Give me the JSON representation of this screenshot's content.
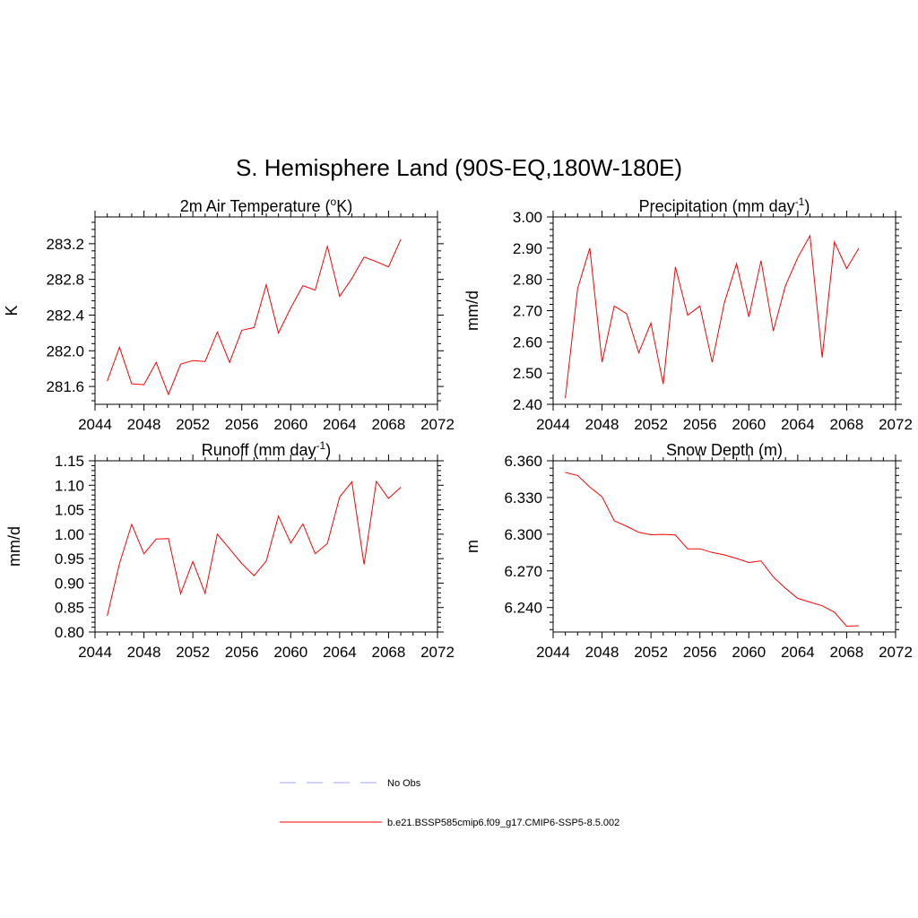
{
  "title": "S. Hemisphere Land (90S-EQ,180W-180E)",
  "colors": {
    "model": "#ff0000",
    "obs": "#a0a0ff"
  },
  "legend": [
    {
      "label": "No Obs",
      "color": "#a0a0ff",
      "dash": true
    },
    {
      "label": "b.e21.BSSP585cmip6.f09_g17.CMIP6-SSP5-8.5.002",
      "color": "#ff0000",
      "dash": false
    }
  ],
  "chart_data": [
    {
      "type": "line",
      "title_main": "2m Air Temperature (",
      "title_sup_pre": "o",
      "title_after_sup": "K)",
      "title_tail": "",
      "ylabel": "K",
      "xlim": [
        2044,
        2072
      ],
      "ylim": [
        281.4,
        283.5
      ],
      "xticks": [
        2044,
        2048,
        2052,
        2056,
        2060,
        2064,
        2068,
        2072
      ],
      "yticks": [
        281.6,
        282.0,
        282.4,
        282.8,
        283.2
      ],
      "ytick_labels": [
        "281.6",
        "282.0",
        "282.4",
        "282.8",
        "283.2"
      ],
      "x": [
        2045,
        2046,
        2047,
        2048,
        2049,
        2050,
        2051,
        2052,
        2053,
        2054,
        2055,
        2056,
        2057,
        2058,
        2059,
        2060,
        2061,
        2062,
        2063,
        2064,
        2065,
        2066,
        2067,
        2068,
        2069
      ],
      "values": [
        281.66,
        282.04,
        281.63,
        281.62,
        281.87,
        281.51,
        281.85,
        281.89,
        281.88,
        282.21,
        281.87,
        282.23,
        282.26,
        282.74,
        282.2,
        282.48,
        282.73,
        282.68,
        283.17,
        282.61,
        282.81,
        283.05,
        283.0,
        282.94,
        283.25
      ]
    },
    {
      "type": "line",
      "title_main": "Precipitation (mm day",
      "title_sup_pre": "-1",
      "title_after_sup": ")",
      "title_tail": "",
      "ylabel": "mm/d",
      "xlim": [
        2044,
        2072
      ],
      "ylim": [
        2.4,
        3.0
      ],
      "xticks": [
        2044,
        2048,
        2052,
        2056,
        2060,
        2064,
        2068,
        2072
      ],
      "yticks": [
        2.4,
        2.5,
        2.6,
        2.7,
        2.8,
        2.9,
        3.0
      ],
      "ytick_labels": [
        "2.40",
        "2.50",
        "2.60",
        "2.70",
        "2.80",
        "2.90",
        "3.00"
      ],
      "x": [
        2045,
        2046,
        2047,
        2048,
        2049,
        2050,
        2051,
        2052,
        2053,
        2054,
        2055,
        2056,
        2057,
        2058,
        2059,
        2060,
        2061,
        2062,
        2063,
        2064,
        2065,
        2066,
        2067,
        2068,
        2069
      ],
      "values": [
        2.42,
        2.77,
        2.9,
        2.535,
        2.715,
        2.69,
        2.565,
        2.66,
        2.465,
        2.84,
        2.685,
        2.715,
        2.535,
        2.725,
        2.85,
        2.68,
        2.86,
        2.635,
        2.78,
        2.87,
        2.94,
        2.55,
        2.92,
        2.835,
        2.9
      ]
    },
    {
      "type": "line",
      "title_main": "Runoff (mm day",
      "title_sup_pre": "-1",
      "title_after_sup": ")",
      "title_tail": "",
      "ylabel": "mm/d",
      "xlim": [
        2044,
        2072
      ],
      "ylim": [
        0.8,
        1.15
      ],
      "xticks": [
        2044,
        2048,
        2052,
        2056,
        2060,
        2064,
        2068,
        2072
      ],
      "yticks": [
        0.8,
        0.85,
        0.9,
        0.95,
        1.0,
        1.05,
        1.1,
        1.15
      ],
      "ytick_labels": [
        "0.80",
        "0.85",
        "0.90",
        "0.95",
        "1.00",
        "1.05",
        "1.10",
        "1.15"
      ],
      "x": [
        2045,
        2046,
        2047,
        2048,
        2049,
        2050,
        2051,
        2052,
        2053,
        2054,
        2055,
        2056,
        2057,
        2058,
        2059,
        2060,
        2061,
        2062,
        2063,
        2064,
        2065,
        2066,
        2067,
        2068,
        2069
      ],
      "values": [
        0.833,
        0.94,
        1.02,
        0.96,
        0.99,
        0.991,
        0.878,
        0.944,
        0.879,
        1.0,
        0.97,
        0.94,
        0.915,
        0.945,
        1.037,
        0.982,
        1.021,
        0.96,
        0.981,
        1.076,
        1.107,
        0.938,
        1.108,
        1.073,
        1.096
      ]
    },
    {
      "type": "line",
      "title_main": "Snow Depth (m)",
      "title_sup_pre": "",
      "title_after_sup": "",
      "title_tail": "",
      "ylabel": "m",
      "xlim": [
        2044,
        2072
      ],
      "ylim": [
        6.22,
        6.36
      ],
      "xticks": [
        2044,
        2048,
        2052,
        2056,
        2060,
        2064,
        2068,
        2072
      ],
      "yticks": [
        6.24,
        6.27,
        6.3,
        6.33,
        6.36
      ],
      "ytick_labels": [
        "6.240",
        "6.270",
        "6.300",
        "6.330",
        "6.360"
      ],
      "x": [
        2045,
        2046,
        2047,
        2048,
        2049,
        2050,
        2051,
        2052,
        2053,
        2054,
        2055,
        2056,
        2057,
        2058,
        2059,
        2060,
        2061,
        2062,
        2063,
        2064,
        2065,
        2066,
        2067,
        2068,
        2069
      ],
      "values": [
        6.3505,
        6.348,
        6.3385,
        6.3305,
        6.311,
        6.3065,
        6.3015,
        6.2995,
        6.2998,
        6.2993,
        6.288,
        6.288,
        6.285,
        6.283,
        6.2802,
        6.2768,
        6.2782,
        6.265,
        6.2558,
        6.2475,
        6.2445,
        6.2415,
        6.2362,
        6.2248,
        6.2251
      ]
    }
  ]
}
